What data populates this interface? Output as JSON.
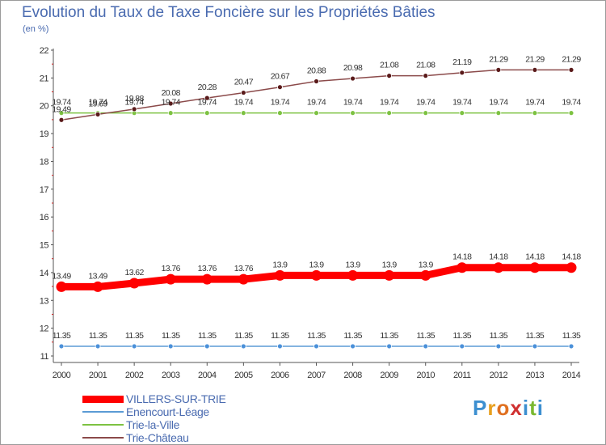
{
  "title": "Evolution du Taux de Taxe Foncière sur les Propriétés Bâties",
  "subtitle": "(en %)",
  "brand": {
    "letters": [
      "P",
      "r",
      "o",
      "x",
      "i",
      "t",
      "i"
    ],
    "colors": [
      "#3c8fd0",
      "#e8a020",
      "#e07020",
      "#d03030",
      "#3c8fd0",
      "#7ab830",
      "#3c8fd0"
    ]
  },
  "chart_data": {
    "type": "line",
    "x": [
      "2000",
      "2001",
      "2002",
      "2003",
      "2004",
      "2005",
      "2006",
      "2007",
      "2008",
      "2009",
      "2010",
      "2011",
      "2012",
      "2013",
      "2014"
    ],
    "ylim": [
      11,
      22
    ],
    "yticks": [
      "11",
      "12",
      "13",
      "14",
      "15",
      "16",
      "17",
      "18",
      "19",
      "20",
      "21",
      "22"
    ],
    "grid": false,
    "legend_position": "bottom-left",
    "series": [
      {
        "name": "VILLERS-SUR-TRIE",
        "color": "#ff0000",
        "values": [
          13.49,
          13.49,
          13.62,
          13.76,
          13.76,
          13.76,
          13.9,
          13.9,
          13.9,
          13.9,
          13.9,
          14.18,
          14.18,
          14.18,
          14.18
        ],
        "labels": [
          "13.49",
          "13.49",
          "13.62",
          "13.76",
          "13.76",
          "13.76",
          "13.9",
          "13.9",
          "13.9",
          "13.9",
          "13.9",
          "14.18",
          "14.18",
          "14.18",
          "14.18"
        ]
      },
      {
        "name": "Enencourt-Léage",
        "color": "#5b9bd5",
        "values": [
          11.35,
          11.35,
          11.35,
          11.35,
          11.35,
          11.35,
          11.35,
          11.35,
          11.35,
          11.35,
          11.35,
          11.35,
          11.35,
          11.35,
          11.35
        ],
        "labels": [
          "11.35",
          "11.35",
          "11.35",
          "11.35",
          "11.35",
          "11.35",
          "11.35",
          "11.35",
          "11.35",
          "11.35",
          "11.35",
          "11.35",
          "11.35",
          "11.35",
          "11.35"
        ]
      },
      {
        "name": "Trie-la-Ville",
        "color": "#7dc242",
        "values": [
          19.74,
          19.74,
          19.74,
          19.74,
          19.74,
          19.74,
          19.74,
          19.74,
          19.74,
          19.74,
          19.74,
          19.74,
          19.74,
          19.74,
          19.74
        ],
        "labels": [
          "19.74",
          "19.74",
          "19.74",
          "19.74",
          "19.74",
          "19.74",
          "19.74",
          "19.74",
          "19.74",
          "19.74",
          "19.74",
          "19.74",
          "19.74",
          "19.74",
          "19.74"
        ]
      },
      {
        "name": "Trie-Château",
        "color": "#8b4a4a",
        "values": [
          19.49,
          19.69,
          19.88,
          20.08,
          20.28,
          20.47,
          20.67,
          20.88,
          20.98,
          21.08,
          21.08,
          21.19,
          21.29,
          21.29,
          21.29
        ],
        "labels": [
          "19.49",
          "19.69",
          "19.88",
          "20.08",
          "20.28",
          "20.47",
          "20.67",
          "20.88",
          "20.98",
          "21.08",
          "21.08",
          "21.19",
          "21.29",
          "21.29",
          "21.29"
        ]
      }
    ]
  }
}
